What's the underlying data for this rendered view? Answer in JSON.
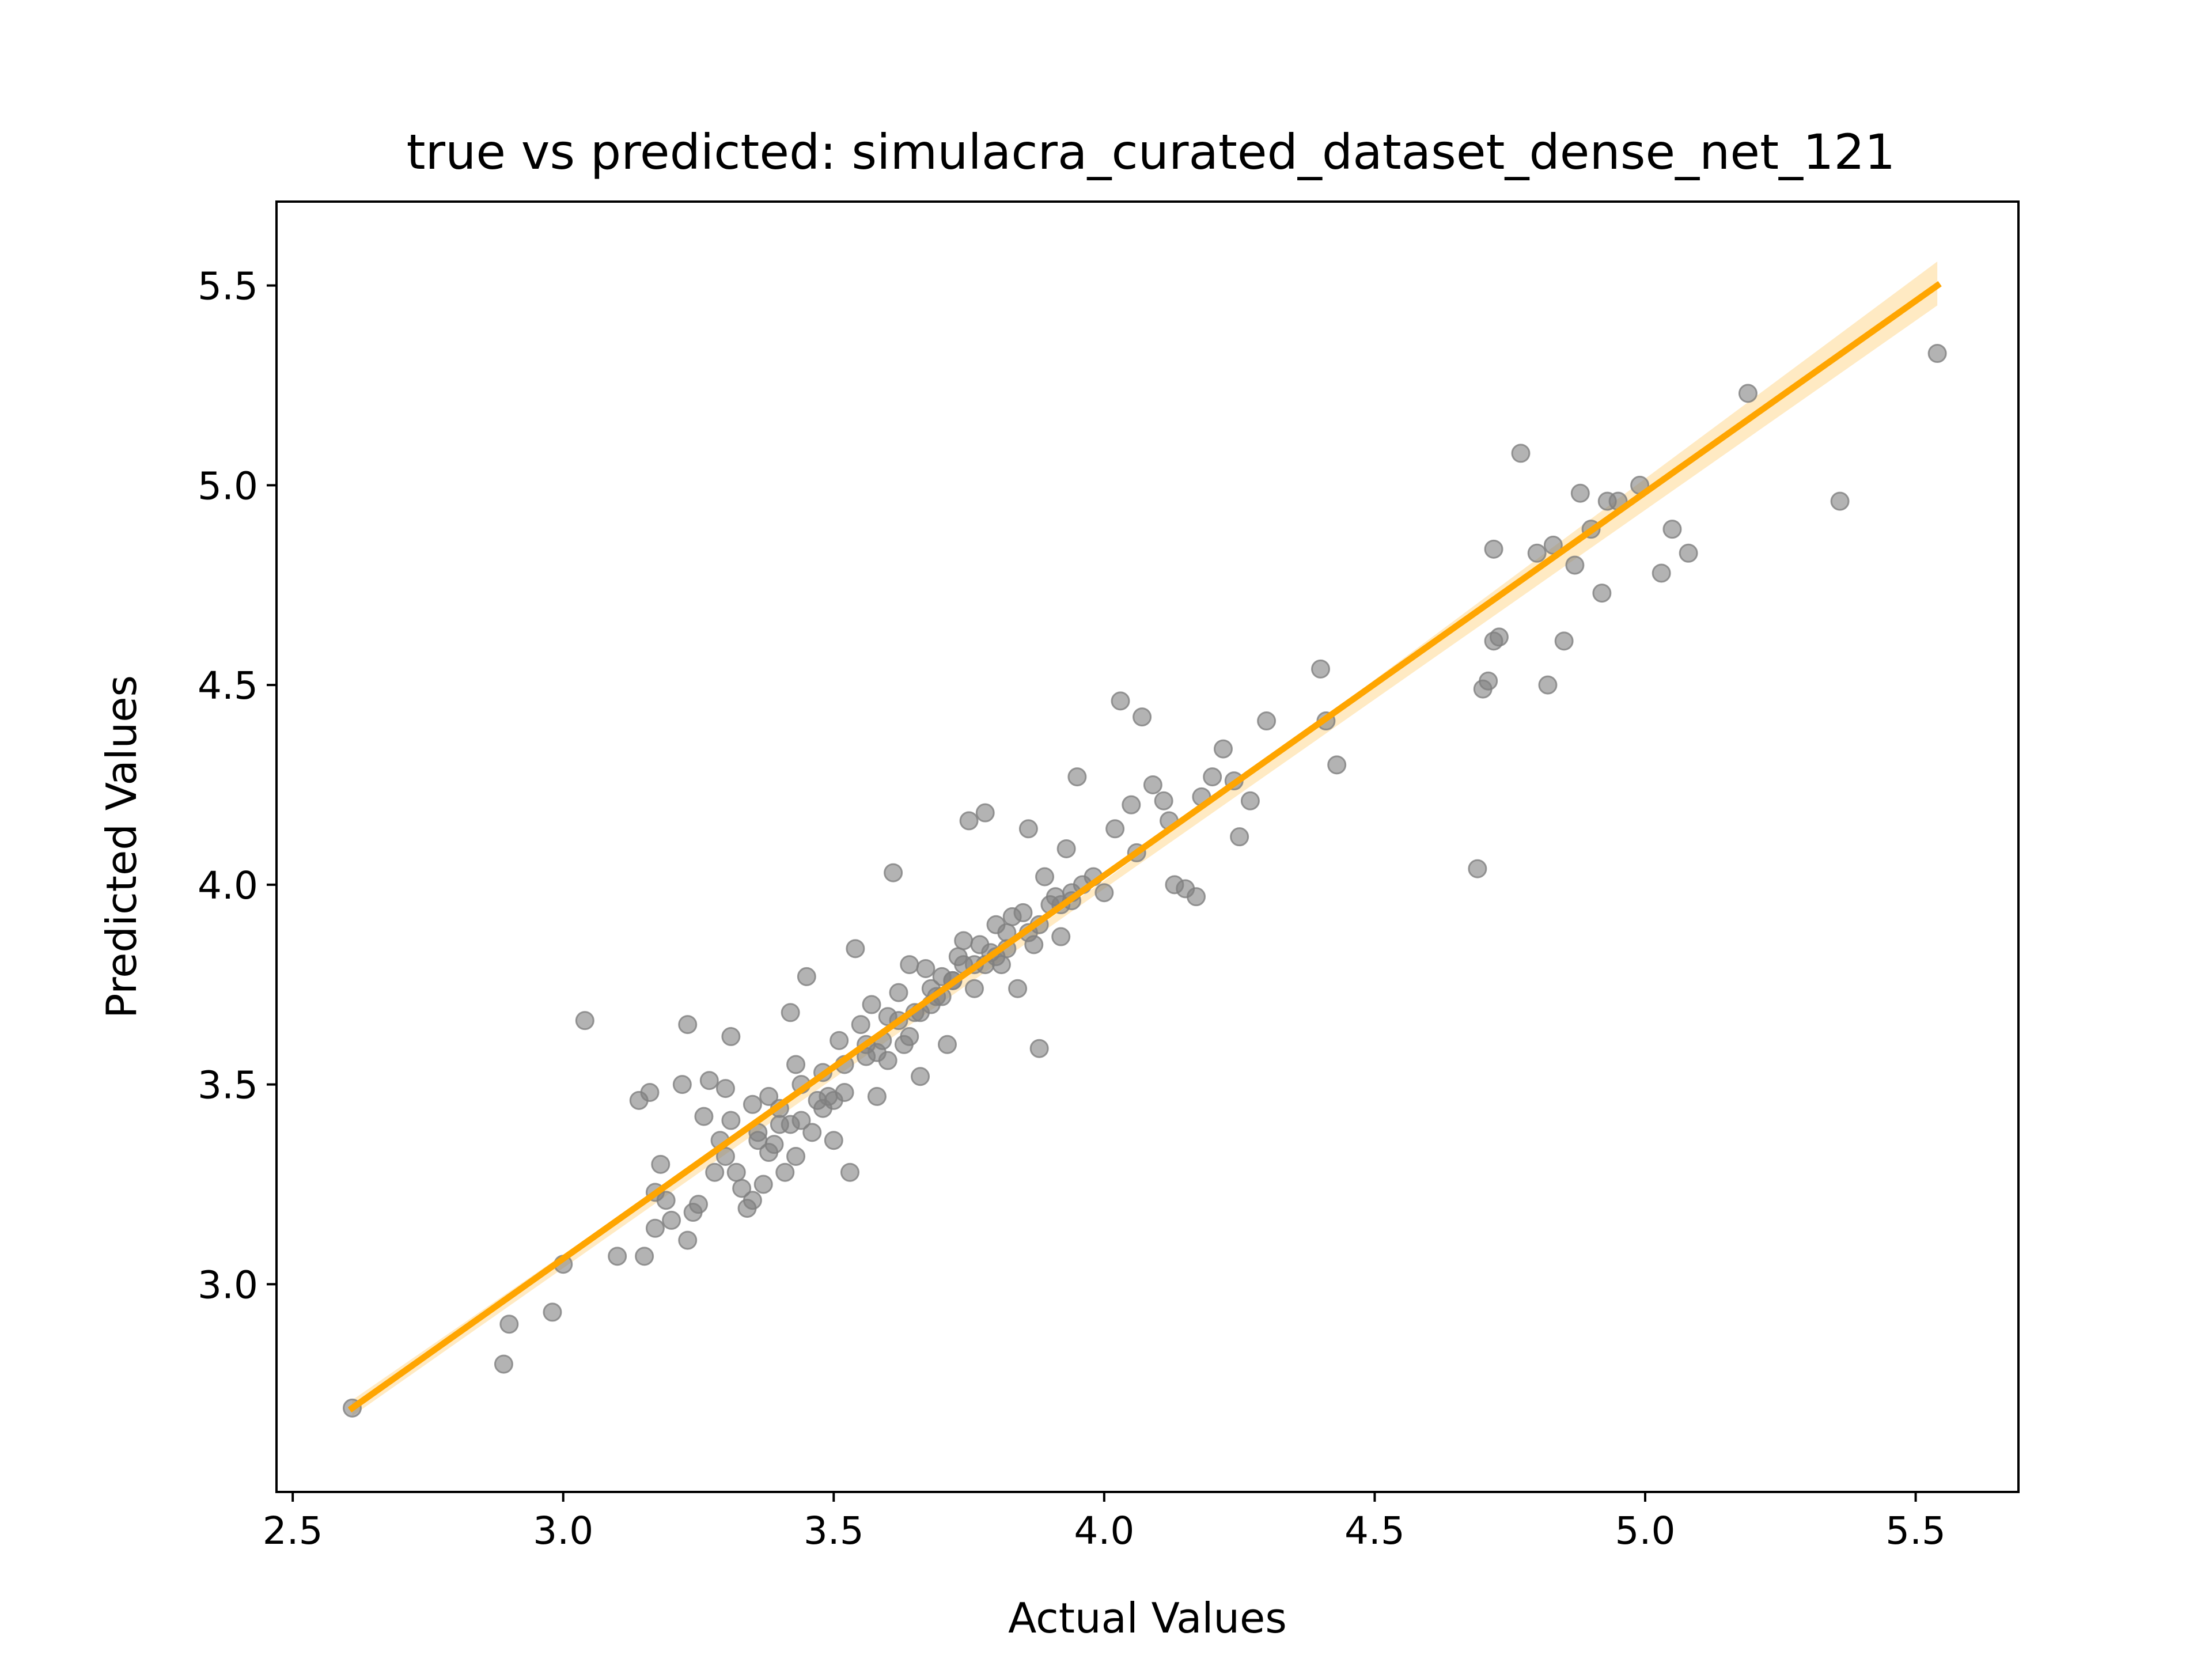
{
  "chart_data": {
    "type": "scatter",
    "title": "true vs predicted: simulacra_curated_dataset_dense_net_121",
    "xlabel": "Actual Values",
    "ylabel": "Predicted Values",
    "xlim": [
      2.47,
      5.69
    ],
    "ylim": [
      2.48,
      5.71
    ],
    "xticks": [
      2.5,
      3.0,
      3.5,
      4.0,
      4.5,
      5.0,
      5.5
    ],
    "xtick_labels": [
      "2.5",
      "3.0",
      "3.5",
      "4.0",
      "4.5",
      "5.0",
      "5.5"
    ],
    "yticks": [
      3.0,
      3.5,
      4.0,
      4.5,
      5.0,
      5.5
    ],
    "ytick_labels": [
      "3.0",
      "3.5",
      "4.0",
      "4.5",
      "5.0",
      "5.5"
    ],
    "grid": false,
    "legend": "none",
    "colors": {
      "points": "#808080",
      "fit_line": "#ffa500",
      "confidence_band": "#ffe5b4",
      "axes": "#000000"
    },
    "fit_line": {
      "x": [
        2.61,
        5.54
      ],
      "y": [
        2.69,
        5.5
      ]
    },
    "confidence_band": {
      "x": [
        2.61,
        4.0,
        5.54
      ],
      "lower": [
        2.67,
        3.99,
        5.45
      ],
      "upper": [
        2.71,
        4.01,
        5.56
      ]
    },
    "series": [
      {
        "x": [
          2.61,
          2.89,
          2.9,
          2.98,
          3.0,
          3.04,
          3.1,
          3.14,
          3.15,
          3.16,
          3.17,
          3.17,
          3.18,
          3.19,
          3.2,
          3.22,
          3.23,
          3.23,
          3.24,
          3.25,
          3.26,
          3.27,
          3.28,
          3.29,
          3.3,
          3.31,
          3.31,
          3.32,
          3.33,
          3.34,
          3.35,
          3.35,
          3.36,
          3.37,
          3.38,
          3.38,
          3.39,
          3.4,
          3.41,
          3.42,
          3.43,
          3.43,
          3.44,
          3.45,
          3.46,
          3.47,
          3.48,
          3.49,
          3.5,
          3.51,
          3.52,
          3.53,
          3.54,
          3.55,
          3.56,
          3.57,
          3.58,
          3.59,
          3.6,
          3.61,
          3.62,
          3.63,
          3.64,
          3.65,
          3.66,
          3.67,
          3.68,
          3.69,
          3.7,
          3.71,
          3.72,
          3.73,
          3.74,
          3.75,
          3.76,
          3.77,
          3.78,
          3.79,
          3.8,
          3.81,
          3.82,
          3.83,
          3.84,
          3.85,
          3.86,
          3.87,
          3.88,
          3.89,
          3.9,
          3.91,
          3.92,
          3.93,
          3.94,
          3.95,
          3.96,
          3.98,
          4.0,
          4.02,
          4.03,
          4.05,
          4.07,
          4.09,
          4.11,
          4.13,
          4.15,
          4.17,
          4.2,
          4.22,
          4.25,
          4.27,
          4.3,
          4.4,
          4.41,
          4.43,
          4.69,
          4.7,
          4.71,
          4.72,
          4.72,
          4.73,
          4.77,
          4.8,
          4.82,
          4.83,
          4.85,
          4.87,
          4.88,
          4.9,
          4.92,
          4.93,
          4.95,
          4.99,
          5.03,
          5.05,
          5.08,
          5.19,
          5.36,
          5.54,
          3.3,
          3.36,
          3.42,
          3.48,
          3.52,
          3.58,
          3.64,
          3.68,
          3.72,
          3.78,
          3.82,
          3.86,
          3.92,
          3.44,
          3.56,
          3.62,
          3.7,
          3.74,
          3.8,
          3.88,
          3.94,
          4.06,
          4.12,
          4.18,
          4.24,
          3.4,
          3.5,
          3.6,
          3.66,
          3.76
        ],
        "y": [
          2.69,
          2.8,
          2.9,
          2.93,
          3.05,
          3.66,
          3.07,
          3.46,
          3.07,
          3.48,
          3.14,
          3.23,
          3.3,
          3.21,
          3.16,
          3.5,
          3.65,
          3.11,
          3.18,
          3.2,
          3.42,
          3.51,
          3.28,
          3.36,
          3.49,
          3.41,
          3.62,
          3.28,
          3.24,
          3.19,
          3.21,
          3.45,
          3.38,
          3.25,
          3.47,
          3.33,
          3.35,
          3.44,
          3.28,
          3.68,
          3.55,
          3.32,
          3.41,
          3.77,
          3.38,
          3.46,
          3.53,
          3.47,
          3.36,
          3.61,
          3.48,
          3.28,
          3.84,
          3.65,
          3.57,
          3.7,
          3.47,
          3.61,
          3.67,
          4.03,
          3.73,
          3.6,
          3.8,
          3.68,
          3.52,
          3.79,
          3.74,
          3.72,
          3.77,
          3.6,
          3.76,
          3.82,
          3.86,
          4.16,
          3.8,
          3.85,
          4.18,
          3.83,
          3.9,
          3.8,
          3.88,
          3.92,
          3.74,
          3.93,
          4.14,
          3.85,
          3.59,
          4.02,
          3.95,
          3.97,
          3.87,
          4.09,
          3.98,
          4.27,
          4.0,
          4.02,
          3.98,
          4.14,
          4.46,
          4.2,
          4.42,
          4.25,
          4.21,
          4.0,
          3.99,
          3.97,
          4.27,
          4.34,
          4.12,
          4.21,
          4.41,
          4.54,
          4.41,
          4.3,
          4.04,
          4.49,
          4.51,
          4.84,
          4.61,
          4.62,
          5.08,
          4.83,
          4.5,
          4.85,
          4.61,
          4.8,
          4.98,
          4.89,
          4.73,
          4.96,
          4.96,
          5.0,
          4.78,
          4.89,
          4.83,
          5.23,
          4.96,
          5.33,
          3.32,
          3.36,
          3.4,
          3.44,
          3.55,
          3.58,
          3.62,
          3.7,
          3.76,
          3.8,
          3.84,
          3.88,
          3.95,
          3.5,
          3.6,
          3.66,
          3.72,
          3.8,
          3.82,
          3.9,
          3.96,
          4.08,
          4.16,
          4.22,
          4.26,
          3.4,
          3.46,
          3.56,
          3.68,
          3.74
        ]
      }
    ]
  }
}
